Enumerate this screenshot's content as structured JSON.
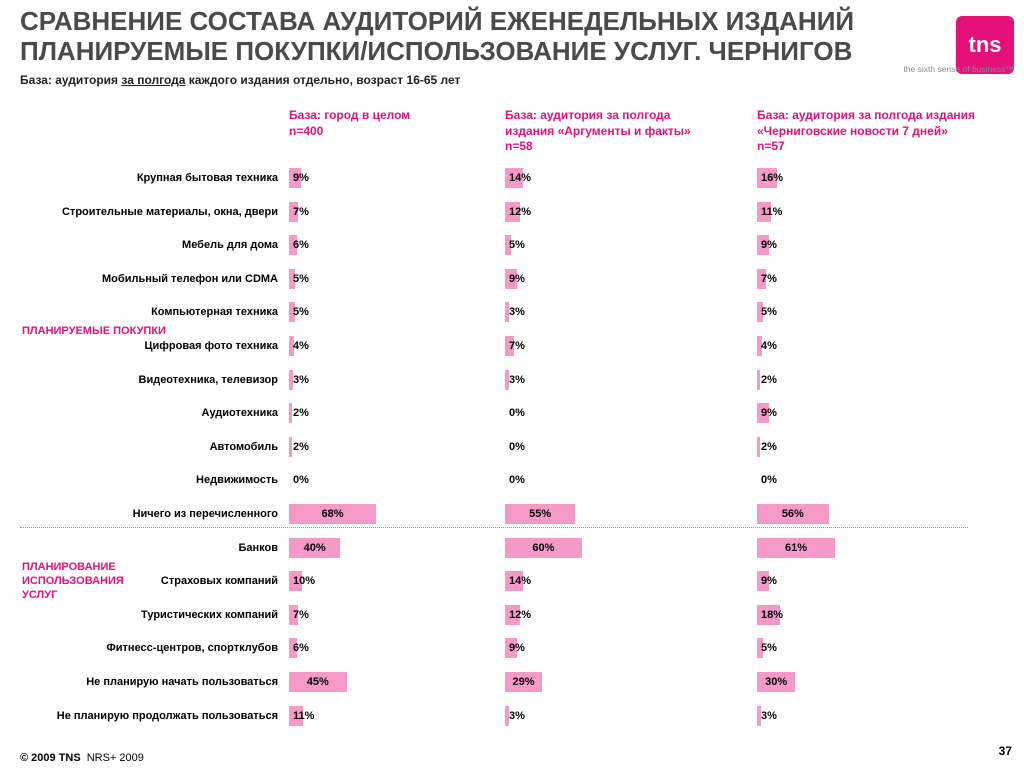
{
  "header": {
    "title_line1": "СРАВНЕНИЕ СОСТАВА АУДИТОРИЙ ЕЖЕНЕДЕЛЬНЫХ ИЗДАНИЙ",
    "title_line2": "ПЛАНИРУЕМЫЕ ПОКУПКИ/ИСПОЛЬЗОВАНИЕ УСЛУГ. ЧЕРНИГОВ",
    "logo_text": "tns",
    "tagline": "the sixth sense of business™"
  },
  "base": {
    "prefix": "База: аудитория ",
    "underlined": "за полгода",
    "suffix": " каждого издания отдельно, возраст 16-65 лет"
  },
  "colors": {
    "accent": "#e5107a",
    "bar": "#f59ac8"
  },
  "groups": {
    "purchases": "ПЛАНИРУЕМЫЕ ПОКУПКИ",
    "services": "ПЛАНИРОВАНИЕ ИСПОЛЬЗОВАНИЯ УСЛУГ"
  },
  "footer": {
    "copyright": "© 2009 TNS",
    "source": "NRS+ 2009",
    "page_number": "37"
  },
  "chart_data": {
    "type": "bar",
    "orientation": "horizontal",
    "unit": "%",
    "categories": [
      "Крупная бытовая техника",
      "Строительные материалы, окна, двери",
      "Мебель для дома",
      "Мобильный телефон или CDMA",
      "Компьютерная техника",
      "Цифровая фото техника",
      "Видеотехника, телевизор",
      "Аудиотехника",
      "Автомобиль",
      "Недвижимость",
      "Ничего из перечисленного",
      "Банков",
      "Страховых компаний",
      "Туристических компаний",
      "Фитнесс-центров, спортклубов",
      "Не планирую начать пользоваться",
      "Не планирую продолжать пользоваться"
    ],
    "series": [
      {
        "name": "База: город в целом n=400",
        "name_lines": [
          "База: город в целом",
          "n=400"
        ],
        "values": [
          9,
          7,
          6,
          5,
          5,
          4,
          3,
          2,
          2,
          0,
          68,
          40,
          10,
          7,
          6,
          45,
          11
        ]
      },
      {
        "name": "База: аудитория за полгода издания «Аргументы и факты» n=58",
        "name_lines": [
          "База: аудитория за полгода",
          "издания «Аргументы и факты»",
          "n=58"
        ],
        "values": [
          14,
          12,
          5,
          9,
          3,
          7,
          3,
          0,
          0,
          0,
          55,
          60,
          14,
          12,
          9,
          29,
          3
        ]
      },
      {
        "name": "База: аудитория за полгода издания «Черниговские новости 7 дней» n=57",
        "name_lines": [
          "База: аудитория за полгода издания",
          "«Черниговские новости 7 дней»",
          "n=57"
        ],
        "values": [
          16,
          11,
          9,
          7,
          5,
          4,
          2,
          9,
          2,
          0,
          56,
          61,
          9,
          18,
          5,
          30,
          3
        ]
      }
    ]
  }
}
